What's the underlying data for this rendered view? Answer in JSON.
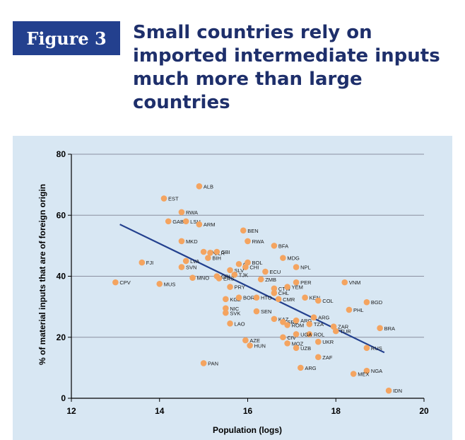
{
  "figure": {
    "label": "Figure 3",
    "title_lines": [
      "Small countries rely on",
      "imported intermediate inputs",
      "much more than large countries"
    ]
  },
  "colors": {
    "background_panel": "#d8e7f3",
    "point": "#f4a460",
    "trend": "#23408e",
    "title": "#1e2f6b",
    "label_box": "#23408e"
  },
  "chart_data": {
    "type": "scatter",
    "xlabel": "Population (logs)",
    "ylabel": "% of material inputs that are of foreign origin",
    "xlim": [
      12,
      20
    ],
    "ylim": [
      0,
      80
    ],
    "xticks": [
      12,
      14,
      16,
      18,
      20
    ],
    "yticks": [
      0,
      20,
      40,
      60,
      80
    ],
    "grid": true,
    "trendline": {
      "x": [
        13.1,
        19.1
      ],
      "y": [
        57,
        15
      ]
    },
    "points": [
      {
        "label": "ALB",
        "x": 14.9,
        "y": 69.5
      },
      {
        "label": "EST",
        "x": 14.1,
        "y": 65.5
      },
      {
        "label": "RWA",
        "x": 14.5,
        "y": 61
      },
      {
        "label": "GAB",
        "x": 14.2,
        "y": 58
      },
      {
        "label": "LSU",
        "x": 14.6,
        "y": 58
      },
      {
        "label": "ARM",
        "x": 14.9,
        "y": 57
      },
      {
        "label": "BEN",
        "x": 15.9,
        "y": 55
      },
      {
        "label": "MKD",
        "x": 14.5,
        "y": 51.5
      },
      {
        "label": "RWA",
        "x": 16.0,
        "y": 51.5
      },
      {
        "label": "BFA",
        "x": 16.6,
        "y": 50
      },
      {
        "label": "PNA",
        "x": 15.0,
        "y": 48
      },
      {
        "label": "BLR",
        "x": 15.15,
        "y": 47.7
      },
      {
        "label": "GBI",
        "x": 15.3,
        "y": 48
      },
      {
        "label": "BIH",
        "x": 15.1,
        "y": 46
      },
      {
        "label": "MDG",
        "x": 16.8,
        "y": 46
      },
      {
        "label": "FJI",
        "x": 13.6,
        "y": 44.5
      },
      {
        "label": "LVA",
        "x": 14.6,
        "y": 45
      },
      {
        "label": "SVN",
        "x": 14.5,
        "y": 43
      },
      {
        "label": "CI",
        "x": 15.8,
        "y": 44
      },
      {
        "label": "BOL",
        "x": 16.0,
        "y": 44.5
      },
      {
        "label": "CHI",
        "x": 15.95,
        "y": 43
      },
      {
        "label": "NPL",
        "x": 17.1,
        "y": 43
      },
      {
        "label": "SLV",
        "x": 15.6,
        "y": 42
      },
      {
        "label": "ECU",
        "x": 16.4,
        "y": 41.5
      },
      {
        "label": "TJK",
        "x": 15.7,
        "y": 40.5
      },
      {
        "label": "MNO",
        "x": 14.75,
        "y": 39.5
      },
      {
        "label": "CRI",
        "x": 15.3,
        "y": 40
      },
      {
        "label": "ERS",
        "x": 15.35,
        "y": 39.3
      },
      {
        "label": "ZMB",
        "x": 16.3,
        "y": 39
      },
      {
        "label": "CPV",
        "x": 13.0,
        "y": 38
      },
      {
        "label": "MUS",
        "x": 14.0,
        "y": 37.5
      },
      {
        "label": "PER",
        "x": 17.1,
        "y": 38
      },
      {
        "label": "VNM",
        "x": 18.2,
        "y": 38
      },
      {
        "label": "PRY",
        "x": 15.6,
        "y": 36.5
      },
      {
        "label": "CTW",
        "x": 16.6,
        "y": 36
      },
      {
        "label": "YEM",
        "x": 16.9,
        "y": 36.5
      },
      {
        "label": "CHL",
        "x": 16.6,
        "y": 34.5
      },
      {
        "label": "KGZ",
        "x": 15.5,
        "y": 32.5
      },
      {
        "label": "BOR",
        "x": 15.8,
        "y": 33
      },
      {
        "label": "HTO",
        "x": 16.2,
        "y": 33
      },
      {
        "label": "CMR",
        "x": 16.7,
        "y": 32.5
      },
      {
        "label": "KEN",
        "x": 17.3,
        "y": 33
      },
      {
        "label": "COL",
        "x": 17.6,
        "y": 32
      },
      {
        "label": "BGD",
        "x": 18.7,
        "y": 31.5
      },
      {
        "label": "NIC",
        "x": 15.5,
        "y": 29.5
      },
      {
        "label": "SVK",
        "x": 15.5,
        "y": 28
      },
      {
        "label": "SEN",
        "x": 16.2,
        "y": 28.5
      },
      {
        "label": "PHL",
        "x": 18.3,
        "y": 29
      },
      {
        "label": "KAZ",
        "x": 16.6,
        "y": 26
      },
      {
        "label": "ARG",
        "x": 17.5,
        "y": 26.5
      },
      {
        "label": "SRB",
        "x": 16.8,
        "y": 25
      },
      {
        "label": "ARG",
        "x": 17.1,
        "y": 25.5
      },
      {
        "label": "ROM",
        "x": 16.9,
        "y": 24
      },
      {
        "label": "TZA",
        "x": 17.4,
        "y": 24.3
      },
      {
        "label": "LAO",
        "x": 15.6,
        "y": 24.5
      },
      {
        "label": "ZAR",
        "x": 17.95,
        "y": 23.5
      },
      {
        "label": "BRA",
        "x": 19.0,
        "y": 23
      },
      {
        "label": "TUR",
        "x": 18.0,
        "y": 22
      },
      {
        "label": "ROL",
        "x": 17.4,
        "y": 21
      },
      {
        "label": "CIV",
        "x": 16.8,
        "y": 20
      },
      {
        "label": "UGA",
        "x": 17.1,
        "y": 21
      },
      {
        "label": "AZE",
        "x": 15.95,
        "y": 19
      },
      {
        "label": "UKR",
        "x": 17.6,
        "y": 18.5
      },
      {
        "label": "MOZ",
        "x": 16.9,
        "y": 18
      },
      {
        "label": "HUN",
        "x": 16.05,
        "y": 17.3
      },
      {
        "label": "UZB",
        "x": 17.1,
        "y": 16.5
      },
      {
        "label": "RUS",
        "x": 18.7,
        "y": 16.5
      },
      {
        "label": "ZAF",
        "x": 17.6,
        "y": 13.5
      },
      {
        "label": "PAN",
        "x": 15.0,
        "y": 11.5
      },
      {
        "label": "ARG",
        "x": 17.2,
        "y": 10
      },
      {
        "label": "NGA",
        "x": 18.7,
        "y": 9
      },
      {
        "label": "MEX",
        "x": 18.4,
        "y": 8
      },
      {
        "label": "IDN",
        "x": 19.2,
        "y": 2.5
      }
    ]
  }
}
